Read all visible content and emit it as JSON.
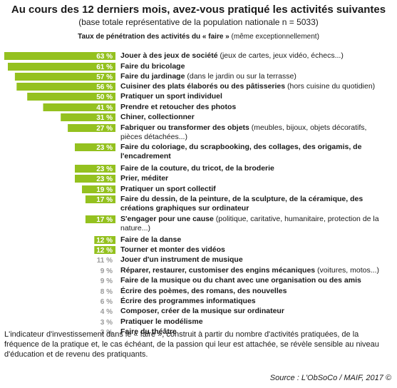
{
  "title": "Au cours des 12 derniers mois, avez-vous pratiqué les activités suivantes",
  "subtitle": "(base totale représentative de la population nationale n = 5033)",
  "caption_bold": "Taux de pénétration des activités du « faire »",
  "caption_rest": " (même exceptionnellement)",
  "footnote": "L'indicateur d'investissement dans le « faire », construit à partir du nombre d'activités pratiquées, de la fréquence de la pratique et, le cas échéant, de la passion qui leur est attachée, se révèle sensible au niveau d'éducation et de revenu des pratiquants.",
  "source": "Source : L'ObSoCo / MAIF, 2017 ©",
  "colors": {
    "bar": "#94c11f",
    "bar_label": "#ffffff",
    "outside_label": "#999999"
  },
  "chart_data": {
    "type": "bar",
    "orientation": "horizontal",
    "unit": "%",
    "categories": [
      {
        "label": "Jouer à des jeux de société",
        "detail": " (jeux de cartes, jeux vidéo, échecs...)"
      },
      {
        "label": "Faire du bricolage",
        "detail": ""
      },
      {
        "label": "Faire du jardinage",
        "detail": " (dans le jardin ou sur la terrasse)"
      },
      {
        "label": "Cuisiner des plats élaborés ou des pâtisseries",
        "detail": " (hors cuisine du quotidien)"
      },
      {
        "label": "Pratiquer un sport individuel",
        "detail": ""
      },
      {
        "label": "Prendre et retoucher des photos",
        "detail": ""
      },
      {
        "label": "Chiner, collectionner",
        "detail": ""
      },
      {
        "label": "Fabriquer ou transformer des objets",
        "detail": " (meubles, bijoux, objets décoratifs, pièces détachées...)"
      },
      {
        "label": "Faire du coloriage, du scrapbooking, des collages, des origamis, de l'encadrement",
        "detail": ""
      },
      {
        "label": "Faire de la couture, du tricot, de la broderie",
        "detail": ""
      },
      {
        "label": "Prier, méditer",
        "detail": ""
      },
      {
        "label": "Pratiquer un sport collectif",
        "detail": ""
      },
      {
        "label": "Faire du dessin, de la peinture, de la sculpture, de la céramique, des créations graphiques sur ordinateur",
        "detail": ""
      },
      {
        "label": "S'engager pour une cause",
        "detail": " (politique, caritative, humanitaire, protection de la nature...)"
      },
      {
        "label": "Faire de la danse",
        "detail": ""
      },
      {
        "label": "Tourner et monter des vidéos",
        "detail": ""
      },
      {
        "label": "Jouer d'un instrument de musique",
        "detail": ""
      },
      {
        "label": "Réparer, restaurer, customiser des engins mécaniques",
        "detail": " (voitures, motos...)"
      },
      {
        "label": "Faire de la musique ou du chant avec une organisation ou des amis",
        "detail": ""
      },
      {
        "label": "Écrire des poèmes, des romans, des nouvelles",
        "detail": ""
      },
      {
        "label": "Écrire des programmes informatiques",
        "detail": ""
      },
      {
        "label": "Composer, créer de la musique sur ordinateur",
        "detail": ""
      },
      {
        "label": "Pratiquer le modélisme",
        "detail": ""
      },
      {
        "label": "Faire du théâtre",
        "detail": ""
      }
    ],
    "values": [
      63,
      61,
      57,
      56,
      50,
      41,
      31,
      27,
      23,
      23,
      23,
      19,
      17,
      17,
      12,
      12,
      11,
      9,
      9,
      8,
      6,
      4,
      3,
      3
    ],
    "bar_labels": [
      "63 %",
      "61 %",
      "57 %",
      "56 %",
      "50 %",
      "41 %",
      "31 %",
      "27 %",
      "23 %",
      "23 %",
      "23 %",
      "19 %",
      "17 %",
      "17 %",
      "12 %",
      "12 %",
      "11 %",
      "9 %",
      "9 %",
      "8 %",
      "6 %",
      "4 %",
      "3 %",
      "3 %"
    ],
    "xlim": [
      0,
      63
    ]
  }
}
